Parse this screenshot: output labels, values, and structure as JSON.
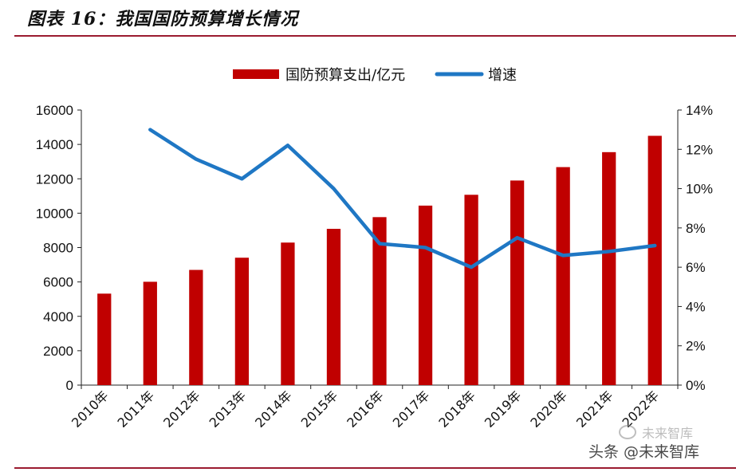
{
  "page": {
    "title": "图表 16：我国国防预算增长情况"
  },
  "chart_data": {
    "type": "bar+line",
    "categories": [
      "2010年",
      "2011年",
      "2012年",
      "2013年",
      "2014年",
      "2015年",
      "2016年",
      "2017年",
      "2018年",
      "2019年",
      "2020年",
      "2021年",
      "2022年"
    ],
    "series": [
      {
        "name": "国防预算支出/亿元",
        "type": "bar",
        "axis": "left",
        "color": "#c00000",
        "values": [
          5320,
          6010,
          6700,
          7410,
          8290,
          9090,
          9770,
          10440,
          11070,
          11900,
          12680,
          13550,
          14500
        ]
      },
      {
        "name": "增速",
        "type": "line",
        "axis": "right",
        "color": "#1f77c4",
        "values": [
          null,
          13.0,
          11.5,
          10.5,
          12.2,
          10.0,
          7.2,
          7.0,
          6.0,
          7.5,
          6.6,
          6.8,
          7.1
        ]
      }
    ],
    "yleft": {
      "min": 0,
      "max": 16000,
      "ticks": [
        "0",
        "2000",
        "4000",
        "6000",
        "8000",
        "10000",
        "12000",
        "14000",
        "16000"
      ]
    },
    "yright": {
      "min": 0,
      "max": 14,
      "ticks": [
        "0%",
        "2%",
        "4%",
        "6%",
        "8%",
        "10%",
        "12%",
        "14%"
      ]
    },
    "legend_position": "top-center",
    "grid": false
  },
  "watermark": {
    "text": "头条 @未来智库",
    "text_faint": "未来智库"
  }
}
